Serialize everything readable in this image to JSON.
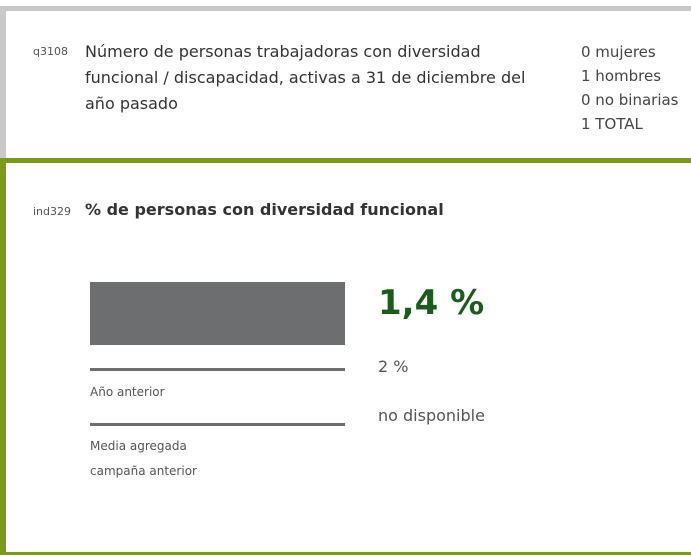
{
  "question": {
    "code": "q3108",
    "text": "Número de personas trabajadoras con diversidad funcional / discapacidad, activas a 31 de diciembre del año pasado",
    "answers": [
      "0 mujeres",
      "1 hombres",
      "0 no binarias",
      "1 TOTAL"
    ]
  },
  "indicator": {
    "code": "ind329",
    "title": "% de personas con diversidad funcional",
    "value": "1,4 %",
    "previous_value": "2 %",
    "previous_label": "Año anterior",
    "average_value": "no disponible",
    "average_label": "Media agregada campaña anterior"
  }
}
